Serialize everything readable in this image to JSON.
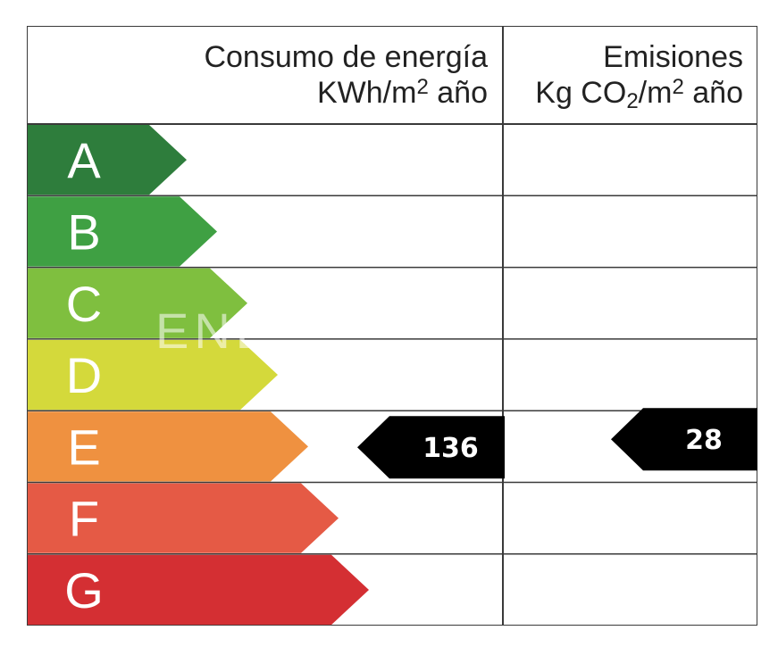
{
  "chart_data": {
    "type": "table",
    "header": {
      "energy_line1": "Consumo de energía",
      "energy_line2_prefix": "KWh/m",
      "energy_line2_sup": "2",
      "energy_line2_suffix": " año",
      "emissions_line1": "Emisiones",
      "emissions_line2_prefix": "Kg CO",
      "emissions_line2_sub": "2",
      "emissions_line2_mid": "/m",
      "emissions_line2_sup": "2",
      "emissions_line2_suffix": " año"
    },
    "categories": [
      "A",
      "B",
      "C",
      "D",
      "E",
      "F",
      "G"
    ],
    "colors": [
      "#2e7d3c",
      "#3fa043",
      "#7fbf3f",
      "#d4d93b",
      "#ef9140",
      "#e55a45",
      "#d42f33"
    ],
    "energy": {
      "class": "E",
      "value": 136
    },
    "emissions": {
      "class": "E",
      "value": 28
    },
    "watermark": "ENE"
  }
}
